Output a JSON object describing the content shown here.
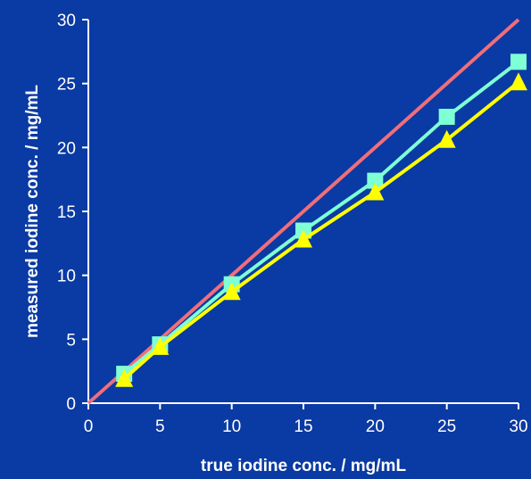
{
  "chart_data": {
    "type": "line",
    "xlabel": "true iodine conc. / mg/mL",
    "ylabel": "measured iodine conc. / mg/mL",
    "xlim": [
      0,
      30
    ],
    "ylim": [
      0,
      30
    ],
    "xticks": [
      0,
      5,
      10,
      15,
      20,
      25,
      30
    ],
    "yticks": [
      0,
      5,
      10,
      15,
      20,
      25,
      30
    ],
    "grid": false,
    "colors": {
      "background": "#0a3aa3",
      "axis": "#ffffff",
      "identity": "#f06e7a",
      "series_square": "#7fffd4",
      "series_triangle": "#ffff00"
    },
    "series": [
      {
        "marker": "none",
        "color": "#f06e7a",
        "x": [
          0,
          30
        ],
        "y": [
          0,
          30
        ]
      },
      {
        "marker": "square",
        "color": "#7fffd4",
        "x": [
          2.5,
          5,
          10,
          15,
          20,
          25,
          30
        ],
        "y": [
          2.3,
          4.6,
          9.3,
          13.5,
          17.4,
          22.4,
          26.7
        ]
      },
      {
        "marker": "triangle",
        "color": "#ffff00",
        "x": [
          2.5,
          5,
          10,
          15,
          20,
          25,
          30
        ],
        "y": [
          1.9,
          4.4,
          8.7,
          12.8,
          16.5,
          20.6,
          25.1
        ]
      }
    ]
  }
}
